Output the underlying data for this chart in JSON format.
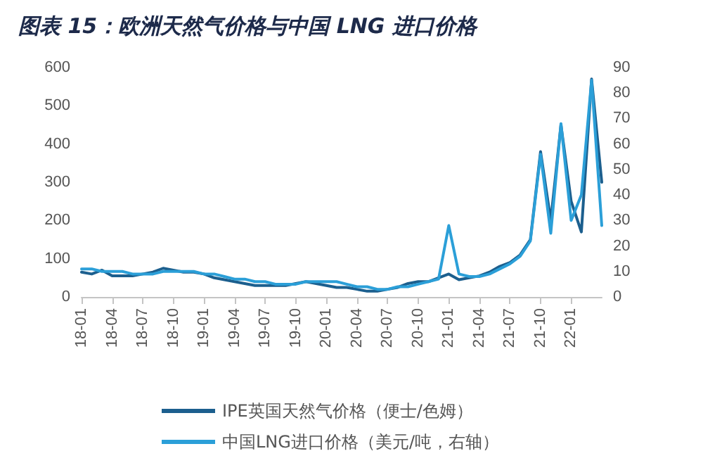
{
  "chart_data": {
    "type": "line",
    "title": "图表 15：欧洲天然气价格与中国 LNG 进口价格",
    "categories": [
      "18-01",
      null,
      null,
      "18-04",
      null,
      null,
      "18-07",
      null,
      null,
      "18-10",
      null,
      null,
      "19-01",
      null,
      null,
      "19-04",
      null,
      null,
      "19-07",
      null,
      null,
      "19-10",
      null,
      null,
      "20-01",
      null,
      null,
      "20-04",
      null,
      null,
      "20-07",
      null,
      null,
      "20-10",
      null,
      null,
      "21-01",
      null,
      null,
      "21-04",
      null,
      null,
      "21-07",
      null,
      null,
      "21-10",
      null,
      null,
      "22-01",
      null,
      null,
      null
    ],
    "series": [
      {
        "name": "IPE英国天然气价格（便士/色姆）",
        "color": "#1c5f8e",
        "values": [
          65,
          60,
          70,
          55,
          55,
          55,
          60,
          65,
          75,
          70,
          65,
          65,
          60,
          50,
          45,
          40,
          35,
          30,
          30,
          30,
          30,
          35,
          40,
          35,
          30,
          25,
          25,
          20,
          15,
          15,
          20,
          25,
          35,
          40,
          40,
          50,
          60,
          45,
          50,
          55,
          65,
          80,
          90,
          110,
          150,
          380,
          200,
          450,
          250,
          170,
          570,
          300
        ]
      },
      {
        "name": "中国LNG进口价格（美元/吨，右轴）",
        "color": "#2b9fd8",
        "axis": "y2",
        "values": [
          11,
          11,
          10,
          10,
          10,
          9,
          9,
          9,
          10,
          10,
          10,
          10,
          9,
          9,
          8,
          7,
          7,
          6,
          6,
          5,
          5,
          5,
          6,
          6,
          6,
          6,
          5,
          4,
          4,
          3,
          3,
          4,
          4,
          5,
          6,
          7,
          28,
          9,
          8,
          8,
          9,
          11,
          13,
          16,
          22,
          56,
          25,
          68,
          30,
          40,
          85,
          28
        ]
      }
    ],
    "ylim": [
      0,
      600
    ],
    "yticks": [
      0,
      100,
      200,
      300,
      400,
      500,
      600
    ],
    "y2lim": [
      0,
      90
    ],
    "y2ticks": [
      0,
      10,
      20,
      30,
      40,
      50,
      60,
      70,
      80,
      90
    ],
    "grid": false,
    "legend": "bottom",
    "marker": "none",
    "line_style": "solid"
  }
}
